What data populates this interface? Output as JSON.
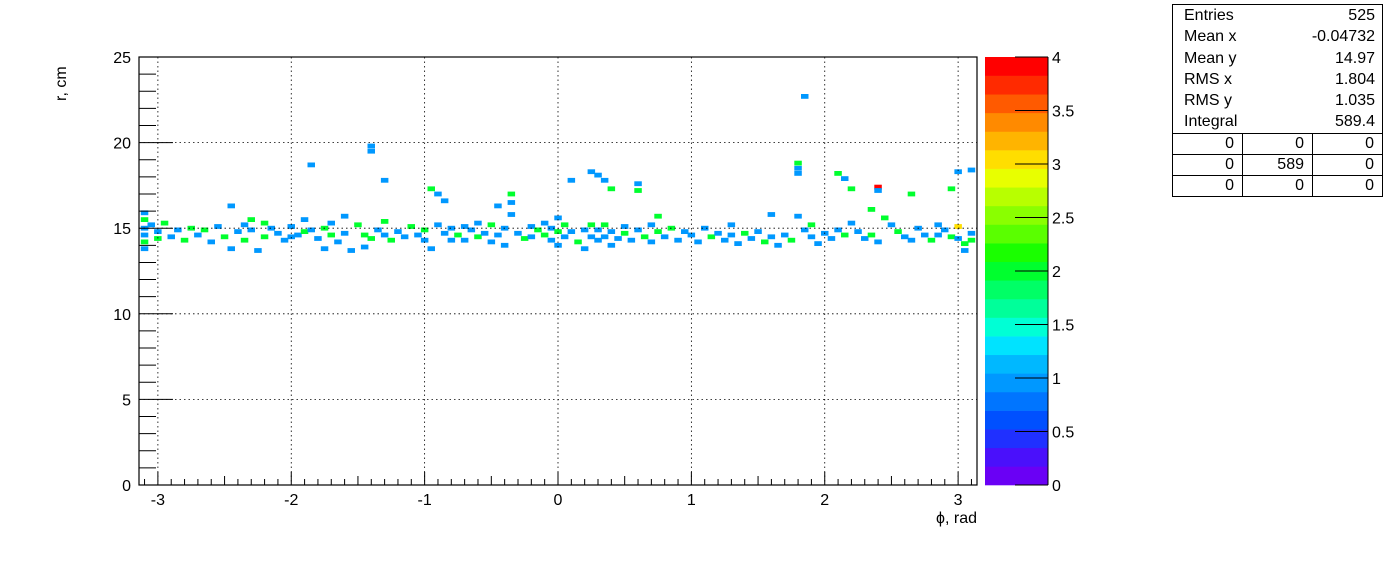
{
  "chart_data": {
    "type": "heatmap",
    "title": "",
    "xlabel": "ϕ, rad",
    "ylabel": "r, cm",
    "xlim": [
      -3.1416,
      3.1416
    ],
    "ylim": [
      0,
      25
    ],
    "x_ticks": [
      {
        "value": -3,
        "label": "-3"
      },
      {
        "value": -2,
        "label": "-2"
      },
      {
        "value": -1,
        "label": "-1"
      },
      {
        "value": 0,
        "label": "0"
      },
      {
        "value": 1,
        "label": "1"
      },
      {
        "value": 2,
        "label": "2"
      },
      {
        "value": 3,
        "label": "3"
      }
    ],
    "y_ticks": [
      {
        "value": 0,
        "label": "0"
      },
      {
        "value": 5,
        "label": "5"
      },
      {
        "value": 10,
        "label": "10"
      },
      {
        "value": 15,
        "label": "15"
      },
      {
        "value": 20,
        "label": "20"
      },
      {
        "value": 25,
        "label": "25"
      }
    ],
    "grid": true,
    "colorbar": {
      "range": [
        0,
        4
      ],
      "ticks": [
        {
          "value": 0,
          "label": "0"
        },
        {
          "value": 0.5,
          "label": "0.5"
        },
        {
          "value": 1,
          "label": "1"
        },
        {
          "value": 1.5,
          "label": "1.5"
        },
        {
          "value": 2,
          "label": "2"
        },
        {
          "value": 2.5,
          "label": "2.5"
        },
        {
          "value": 3,
          "label": "3"
        },
        {
          "value": 3.5,
          "label": "3.5"
        },
        {
          "value": 4,
          "label": "4"
        }
      ],
      "colors": [
        "#6a00f5",
        "#4a10fb",
        "#2030ff",
        "#0050ff",
        "#0075ff",
        "#0098ff",
        "#00b8ff",
        "#00e3ff",
        "#00ffd5",
        "#00ff9a",
        "#00ff66",
        "#00ff2e",
        "#1aff00",
        "#5aff00",
        "#8aff00",
        "#b8ff00",
        "#e8ff00",
        "#ffde00",
        "#ffb400",
        "#ff8a00",
        "#ff5a00",
        "#ff2a00",
        "#ff0000"
      ]
    },
    "cells": [
      [
        -3.1,
        15.9,
        1
      ],
      [
        -3.1,
        15.5,
        2
      ],
      [
        -3.1,
        15.0,
        1
      ],
      [
        -3.1,
        14.6,
        1
      ],
      [
        -3.1,
        14.2,
        2
      ],
      [
        -3.1,
        13.8,
        1
      ],
      [
        -3.05,
        15.2,
        1
      ],
      [
        -3.0,
        14.8,
        1
      ],
      [
        -3.0,
        14.4,
        2
      ],
      [
        -2.95,
        15.3,
        2
      ],
      [
        -2.9,
        14.5,
        1
      ],
      [
        -2.85,
        14.9,
        1
      ],
      [
        -2.8,
        14.3,
        2
      ],
      [
        -2.75,
        15.0,
        2
      ],
      [
        -2.7,
        14.6,
        1
      ],
      [
        -2.65,
        14.9,
        2
      ],
      [
        -2.6,
        14.2,
        1
      ],
      [
        -2.55,
        15.1,
        1
      ],
      [
        -2.5,
        14.5,
        2
      ],
      [
        -2.45,
        16.3,
        1
      ],
      [
        -2.45,
        13.8,
        1
      ],
      [
        -2.4,
        14.8,
        1
      ],
      [
        -2.35,
        15.2,
        1
      ],
      [
        -2.35,
        14.3,
        2
      ],
      [
        -2.3,
        15.5,
        2
      ],
      [
        -2.3,
        14.9,
        1
      ],
      [
        -2.25,
        13.7,
        1
      ],
      [
        -2.2,
        15.3,
        2
      ],
      [
        -2.2,
        14.5,
        2
      ],
      [
        -2.15,
        15.0,
        1
      ],
      [
        -2.1,
        14.7,
        1
      ],
      [
        -2.05,
        14.3,
        1
      ],
      [
        -2.0,
        15.1,
        1
      ],
      [
        -2.0,
        14.5,
        1
      ],
      [
        -1.95,
        14.6,
        1
      ],
      [
        -1.9,
        15.5,
        1
      ],
      [
        -1.9,
        14.8,
        2
      ],
      [
        -1.85,
        18.7,
        1
      ],
      [
        -1.85,
        14.9,
        1
      ],
      [
        -1.8,
        14.4,
        1
      ],
      [
        -1.75,
        15.0,
        2
      ],
      [
        -1.75,
        13.8,
        1
      ],
      [
        -1.7,
        15.3,
        1
      ],
      [
        -1.7,
        14.6,
        2
      ],
      [
        -1.65,
        14.2,
        1
      ],
      [
        -1.6,
        15.7,
        1
      ],
      [
        -1.6,
        14.7,
        1
      ],
      [
        -1.55,
        13.7,
        1
      ],
      [
        -1.5,
        15.2,
        2
      ],
      [
        -1.45,
        14.6,
        2
      ],
      [
        -1.45,
        13.9,
        1
      ],
      [
        -1.4,
        19.8,
        1
      ],
      [
        -1.4,
        19.5,
        1
      ],
      [
        -1.4,
        14.4,
        2
      ],
      [
        -1.35,
        14.9,
        1
      ],
      [
        -1.3,
        17.8,
        1
      ],
      [
        -1.3,
        15.4,
        2
      ],
      [
        -1.3,
        14.6,
        1
      ],
      [
        -1.25,
        14.3,
        2
      ],
      [
        -1.2,
        14.8,
        1
      ],
      [
        -1.15,
        14.5,
        1
      ],
      [
        -1.1,
        15.1,
        2
      ],
      [
        -1.05,
        14.6,
        1
      ],
      [
        -1.0,
        14.9,
        2
      ],
      [
        -1.0,
        14.3,
        1
      ],
      [
        -0.95,
        13.8,
        1
      ],
      [
        -0.95,
        17.3,
        2
      ],
      [
        -0.9,
        17.0,
        1
      ],
      [
        -0.9,
        15.2,
        1
      ],
      [
        -0.85,
        16.6,
        1
      ],
      [
        -0.85,
        14.7,
        1
      ],
      [
        -0.8,
        14.3,
        1
      ],
      [
        -0.8,
        15.0,
        1
      ],
      [
        -0.75,
        14.6,
        2
      ],
      [
        -0.7,
        14.3,
        1
      ],
      [
        -0.7,
        15.1,
        1
      ],
      [
        -0.65,
        14.9,
        1
      ],
      [
        -0.6,
        15.3,
        1
      ],
      [
        -0.6,
        14.5,
        2
      ],
      [
        -0.55,
        14.7,
        1
      ],
      [
        -0.5,
        14.2,
        1
      ],
      [
        -0.5,
        15.2,
        2
      ],
      [
        -0.45,
        14.6,
        1
      ],
      [
        -0.45,
        16.3,
        1
      ],
      [
        -0.4,
        15.0,
        1
      ],
      [
        -0.4,
        14.0,
        1
      ],
      [
        -0.35,
        17.0,
        2
      ],
      [
        -0.35,
        16.5,
        1
      ],
      [
        -0.35,
        15.8,
        1
      ],
      [
        -0.3,
        14.7,
        1
      ],
      [
        -0.25,
        14.4,
        2
      ],
      [
        -0.2,
        15.1,
        1
      ],
      [
        -0.2,
        14.5,
        1
      ],
      [
        -0.15,
        14.9,
        2
      ],
      [
        -0.1,
        14.6,
        2
      ],
      [
        -0.1,
        15.3,
        1
      ],
      [
        -0.05,
        14.3,
        1
      ],
      [
        -0.05,
        15.0,
        1
      ],
      [
        0.0,
        15.6,
        1
      ],
      [
        0.0,
        14.8,
        2
      ],
      [
        0.0,
        14.0,
        1
      ],
      [
        0.05,
        14.5,
        1
      ],
      [
        0.05,
        15.2,
        2
      ],
      [
        0.1,
        14.8,
        1
      ],
      [
        0.1,
        17.8,
        1
      ],
      [
        0.15,
        14.2,
        2
      ],
      [
        0.2,
        14.9,
        1
      ],
      [
        0.2,
        13.8,
        1
      ],
      [
        0.25,
        18.3,
        1
      ],
      [
        0.25,
        15.2,
        2
      ],
      [
        0.25,
        14.5,
        1
      ],
      [
        0.3,
        18.1,
        1
      ],
      [
        0.3,
        14.9,
        1
      ],
      [
        0.3,
        14.3,
        1
      ],
      [
        0.35,
        17.8,
        1
      ],
      [
        0.35,
        15.2,
        2
      ],
      [
        0.35,
        14.5,
        1
      ],
      [
        0.4,
        17.3,
        2
      ],
      [
        0.4,
        14.8,
        1
      ],
      [
        0.4,
        14.0,
        1
      ],
      [
        0.45,
        14.4,
        1
      ],
      [
        0.5,
        15.1,
        1
      ],
      [
        0.5,
        14.7,
        2
      ],
      [
        0.55,
        14.3,
        1
      ],
      [
        0.6,
        17.6,
        1
      ],
      [
        0.6,
        17.2,
        2
      ],
      [
        0.6,
        14.9,
        1
      ],
      [
        0.65,
        14.5,
        2
      ],
      [
        0.7,
        15.2,
        1
      ],
      [
        0.7,
        14.2,
        1
      ],
      [
        0.75,
        14.8,
        2
      ],
      [
        0.75,
        15.7,
        2
      ],
      [
        0.8,
        14.5,
        1
      ],
      [
        0.85,
        15.0,
        2
      ],
      [
        0.9,
        14.3,
        1
      ],
      [
        0.95,
        14.8,
        1
      ],
      [
        1.0,
        14.6,
        1
      ],
      [
        1.05,
        14.2,
        1
      ],
      [
        1.1,
        15.0,
        1
      ],
      [
        1.15,
        14.5,
        2
      ],
      [
        1.2,
        14.7,
        1
      ],
      [
        1.25,
        14.3,
        1
      ],
      [
        1.3,
        15.2,
        1
      ],
      [
        1.3,
        14.6,
        1
      ],
      [
        1.35,
        14.1,
        1
      ],
      [
        1.4,
        14.7,
        2
      ],
      [
        1.45,
        14.4,
        1
      ],
      [
        1.5,
        14.8,
        1
      ],
      [
        1.55,
        14.2,
        2
      ],
      [
        1.6,
        15.8,
        1
      ],
      [
        1.6,
        14.5,
        1
      ],
      [
        1.65,
        14.0,
        1
      ],
      [
        1.7,
        14.6,
        1
      ],
      [
        1.75,
        14.3,
        2
      ],
      [
        1.8,
        15.7,
        1
      ],
      [
        1.8,
        18.8,
        2
      ],
      [
        1.8,
        18.5,
        1
      ],
      [
        1.8,
        18.2,
        1
      ],
      [
        1.85,
        22.7,
        1
      ],
      [
        1.85,
        14.9,
        1
      ],
      [
        1.9,
        15.2,
        2
      ],
      [
        1.9,
        14.5,
        1
      ],
      [
        1.95,
        14.1,
        1
      ],
      [
        2.0,
        14.7,
        1
      ],
      [
        2.05,
        14.4,
        1
      ],
      [
        2.1,
        18.2,
        2
      ],
      [
        2.1,
        14.9,
        1
      ],
      [
        2.15,
        17.9,
        1
      ],
      [
        2.15,
        14.6,
        2
      ],
      [
        2.2,
        17.3,
        2
      ],
      [
        2.2,
        15.3,
        1
      ],
      [
        2.25,
        14.8,
        1
      ],
      [
        2.3,
        14.4,
        1
      ],
      [
        2.35,
        16.1,
        2
      ],
      [
        2.35,
        14.6,
        2
      ],
      [
        2.4,
        17.4,
        4
      ],
      [
        2.4,
        17.2,
        1
      ],
      [
        2.4,
        14.2,
        1
      ],
      [
        2.45,
        15.6,
        2
      ],
      [
        2.5,
        15.2,
        1
      ],
      [
        2.55,
        14.8,
        2
      ],
      [
        2.6,
        14.5,
        1
      ],
      [
        2.65,
        17.0,
        2
      ],
      [
        2.65,
        14.3,
        1
      ],
      [
        2.7,
        15.0,
        1
      ],
      [
        2.75,
        14.6,
        1
      ],
      [
        2.8,
        14.3,
        2
      ],
      [
        2.85,
        15.2,
        1
      ],
      [
        2.85,
        14.6,
        1
      ],
      [
        2.9,
        14.9,
        1
      ],
      [
        2.95,
        17.3,
        2
      ],
      [
        2.95,
        14.5,
        2
      ],
      [
        3.0,
        18.3,
        1
      ],
      [
        3.0,
        15.1,
        3
      ],
      [
        3.0,
        14.4,
        1
      ],
      [
        3.05,
        14.1,
        2
      ],
      [
        3.05,
        13.7,
        1
      ],
      [
        3.1,
        18.4,
        1
      ],
      [
        3.1,
        14.7,
        1
      ],
      [
        3.1,
        14.3,
        2
      ]
    ]
  },
  "stats": {
    "rows": [
      {
        "label": "Entries",
        "value": "525"
      },
      {
        "label": "Mean x",
        "value": "-0.04732"
      },
      {
        "label": "Mean y",
        "value": "14.97"
      },
      {
        "label": "RMS x",
        "value": "1.804"
      },
      {
        "label": "RMS y",
        "value": "1.035"
      },
      {
        "label": "Integral",
        "value": "589.4"
      }
    ],
    "grid": [
      [
        "0",
        "0",
        "0"
      ],
      [
        "0",
        "589",
        "0"
      ],
      [
        "0",
        "0",
        "0"
      ]
    ]
  }
}
